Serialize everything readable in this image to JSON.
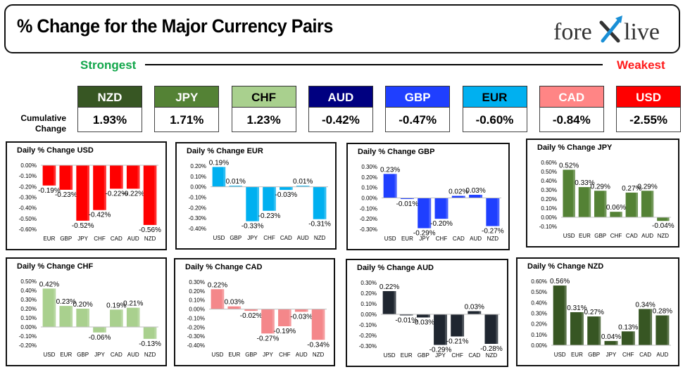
{
  "header": {
    "title": "% Change for the Major Currency Pairs",
    "logo_text_left": "fore",
    "logo_text_right": "live"
  },
  "strength_scale": {
    "strongest": "Strongest",
    "weakest": "Weakest"
  },
  "cumulative_label_1": "Cumulative",
  "cumulative_label_2": "Change",
  "tiles": [
    {
      "currency": "NZD",
      "value": "1.93%",
      "bg": "#375623",
      "fg": "#ffffff"
    },
    {
      "currency": "JPY",
      "value": "1.71%",
      "bg": "#548235",
      "fg": "#ffffff"
    },
    {
      "currency": "CHF",
      "value": "1.23%",
      "bg": "#a9d08e",
      "fg": "#000000"
    },
    {
      "currency": "AUD",
      "value": "-0.42%",
      "bg": "#000080",
      "fg": "#ffffff"
    },
    {
      "currency": "GBP",
      "value": "-0.47%",
      "bg": "#1f3fff",
      "fg": "#ffffff"
    },
    {
      "currency": "EUR",
      "value": "-0.60%",
      "bg": "#00b0f0",
      "fg": "#000000"
    },
    {
      "currency": "CAD",
      "value": "-0.84%",
      "bg": "#ff8585",
      "fg": "#ffffff"
    },
    {
      "currency": "USD",
      "value": "-2.55%",
      "bg": "#ff0000",
      "fg": "#ffffff"
    }
  ],
  "chart_data": [
    {
      "type": "bar",
      "title": "Daily % Change USD",
      "color": "#ff0000",
      "categories": [
        "EUR",
        "GBP",
        "JPY",
        "CHF",
        "CAD",
        "AUD",
        "NZD"
      ],
      "values": [
        -0.19,
        -0.23,
        -0.52,
        -0.42,
        -0.22,
        -0.22,
        -0.56
      ],
      "labels": [
        "-0.19%",
        "-0.23%",
        "-0.52%",
        "-0.42%",
        "-0.22%",
        "-0.22%",
        "-0.56%"
      ],
      "ylim": [
        -0.6,
        0.0
      ],
      "yticks": [
        "0.00%",
        "-0.10%",
        "-0.20%",
        "-0.30%",
        "-0.40%",
        "-0.50%",
        "-0.60%"
      ]
    },
    {
      "type": "bar",
      "title": "Daily % Change EUR",
      "color": "#00b0f0",
      "categories": [
        "USD",
        "GBP",
        "JPY",
        "CHF",
        "CAD",
        "AUD",
        "NZD"
      ],
      "values": [
        0.19,
        0.01,
        -0.33,
        -0.23,
        -0.03,
        0.01,
        -0.31
      ],
      "labels": [
        "0.19%",
        "0.01%",
        "-0.33%",
        "-0.23%",
        "-0.03%",
        "0.01%",
        "-0.31%"
      ],
      "ylim": [
        -0.4,
        0.2
      ],
      "yticks": [
        "0.20%",
        "0.10%",
        "0.00%",
        "-0.10%",
        "-0.20%",
        "-0.30%",
        "-0.40%"
      ]
    },
    {
      "type": "bar",
      "title": "Daily % Change GBP",
      "color": "#1f3fff",
      "categories": [
        "USD",
        "EUR",
        "JPY",
        "CHF",
        "CAD",
        "AUD",
        "NZD"
      ],
      "values": [
        0.23,
        -0.01,
        -0.29,
        -0.2,
        0.02,
        0.03,
        -0.27
      ],
      "labels": [
        "0.23%",
        "-0.01%",
        "-0.29%",
        "-0.20%",
        "0.02%",
        "0.03%",
        "-0.27%"
      ],
      "ylim": [
        -0.3,
        0.3
      ],
      "yticks": [
        "0.30%",
        "0.20%",
        "0.10%",
        "0.00%",
        "-0.10%",
        "-0.20%",
        "-0.30%"
      ]
    },
    {
      "type": "bar",
      "title": "Daily % Change JPY",
      "color": "#548235",
      "categories": [
        "USD",
        "EUR",
        "GBP",
        "CHF",
        "CAD",
        "AUD",
        "NZD"
      ],
      "values": [
        0.52,
        0.33,
        0.29,
        0.06,
        0.27,
        0.29,
        -0.04
      ],
      "labels": [
        "0.52%",
        "0.33%",
        "0.29%",
        "0.06%",
        "0.27%",
        "0.29%",
        "-0.04%"
      ],
      "ylim": [
        -0.1,
        0.6
      ],
      "yticks": [
        "0.60%",
        "0.50%",
        "0.40%",
        "0.30%",
        "0.20%",
        "0.10%",
        "0.00%",
        "-0.10%"
      ]
    },
    {
      "type": "bar",
      "title": "Daily % Change CHF",
      "color": "#a9d08e",
      "categories": [
        "USD",
        "EUR",
        "GBP",
        "JPY",
        "CAD",
        "AUD",
        "NZD"
      ],
      "values": [
        0.42,
        0.23,
        0.2,
        -0.06,
        0.19,
        0.21,
        -0.13
      ],
      "labels": [
        "0.42%",
        "0.23%",
        "0.20%",
        "-0.06%",
        "0.19%",
        "0.21%",
        "-0.13%"
      ],
      "ylim": [
        -0.2,
        0.5
      ],
      "yticks": [
        "0.50%",
        "0.40%",
        "0.30%",
        "0.20%",
        "0.10%",
        "0.00%",
        "-0.10%",
        "-0.20%"
      ]
    },
    {
      "type": "bar",
      "title": "Daily % Change CAD",
      "color": "#f4878a",
      "categories": [
        "USD",
        "EUR",
        "GBP",
        "JPY",
        "CHF",
        "AUD",
        "NZD"
      ],
      "values": [
        0.22,
        0.03,
        -0.02,
        -0.27,
        -0.19,
        -0.03,
        -0.34
      ],
      "labels": [
        "0.22%",
        "0.03%",
        "-0.02%",
        "-0.27%",
        "-0.19%",
        "-0.03%",
        "-0.34%"
      ],
      "ylim": [
        -0.4,
        0.3
      ],
      "yticks": [
        "0.30%",
        "0.20%",
        "0.10%",
        "0.00%",
        "-0.10%",
        "-0.20%",
        "-0.30%",
        "-0.40%"
      ]
    },
    {
      "type": "bar",
      "title": "Daily % Change AUD",
      "color": "#1f2630",
      "categories": [
        "USD",
        "EUR",
        "GBP",
        "JPY",
        "CHF",
        "CAD",
        "NZD"
      ],
      "values": [
        0.22,
        -0.01,
        -0.03,
        -0.29,
        -0.21,
        0.03,
        -0.28
      ],
      "labels": [
        "0.22%",
        "-0.01%",
        "-0.03%",
        "-0.29%",
        "-0.21%",
        "0.03%",
        "-0.28%"
      ],
      "ylim": [
        -0.3,
        0.3
      ],
      "yticks": [
        "0.30%",
        "0.20%",
        "0.10%",
        "0.00%",
        "-0.10%",
        "-0.20%",
        "-0.30%"
      ]
    },
    {
      "type": "bar",
      "title": "Daily % Change NZD",
      "color": "#375623",
      "categories": [
        "USD",
        "EUR",
        "GBP",
        "JPY",
        "CHF",
        "CAD",
        "AUD"
      ],
      "values": [
        0.56,
        0.31,
        0.27,
        0.04,
        0.13,
        0.34,
        0.28
      ],
      "labels": [
        "0.56%",
        "0.31%",
        "0.27%",
        "0.04%",
        "0.13%",
        "0.34%",
        "0.28%"
      ],
      "ylim": [
        0.0,
        0.6
      ],
      "yticks": [
        "0.60%",
        "0.50%",
        "0.40%",
        "0.30%",
        "0.20%",
        "0.10%",
        "0.00%"
      ]
    }
  ]
}
